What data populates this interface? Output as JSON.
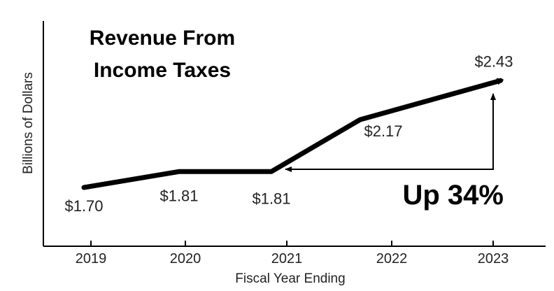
{
  "chart_data": {
    "type": "line",
    "title": [
      "Revenue From",
      "Income Taxes"
    ],
    "xlabel": "Fiscal Year Ending",
    "ylabel": "Billions of Dollars",
    "categories": [
      "2019",
      "2020",
      "2021",
      "2022",
      "2023"
    ],
    "values": [
      1.7,
      1.81,
      1.81,
      2.17,
      2.43
    ],
    "data_labels": [
      "$1.70",
      "$1.81",
      "$1.81",
      "$2.17",
      "$2.43"
    ],
    "annotation": "Up 34%",
    "grid": false,
    "line_color": "#000000"
  }
}
